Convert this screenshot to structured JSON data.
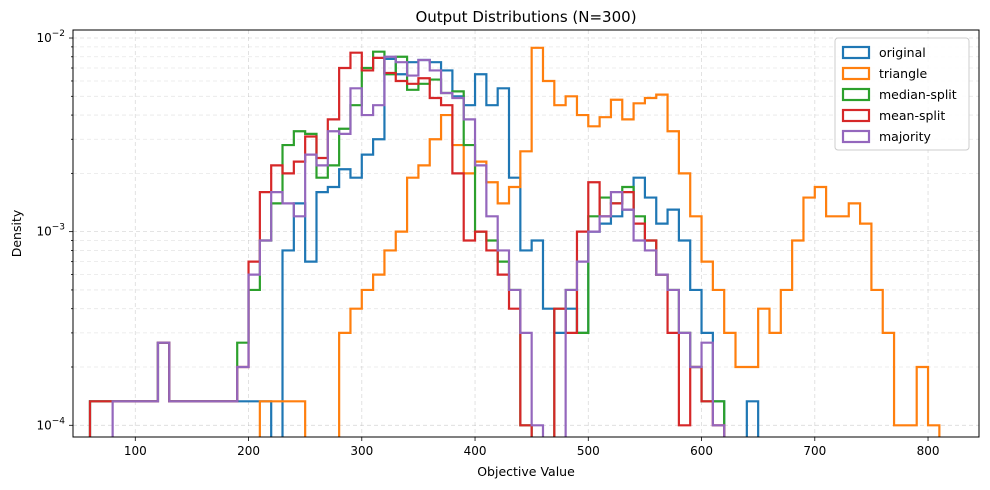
{
  "chart_data": {
    "type": "histogram",
    "title": "Output Distributions (N=300)",
    "xlabel": "Objective Value",
    "ylabel": "Density",
    "xlim": [
      45,
      845
    ],
    "ylim": [
      8.7e-05,
      0.011
    ],
    "yscale": "log",
    "grid": true,
    "legend_position": "top-right",
    "x_ticks": [
      100,
      200,
      300,
      400,
      500,
      600,
      700,
      800
    ],
    "y_ticks": [
      {
        "value": 0.0001,
        "base": "10",
        "exp": "−4"
      },
      {
        "value": 0.001,
        "base": "10",
        "exp": "−3"
      },
      {
        "value": 0.01,
        "base": "10",
        "exp": "−2"
      }
    ],
    "series": [
      {
        "name": "original",
        "color": "#1f77b4",
        "edges": [
          60,
          70,
          80,
          90,
          100,
          110,
          120,
          130,
          140,
          150,
          160,
          170,
          180,
          190,
          200,
          210,
          220,
          230,
          240,
          250,
          260,
          270,
          280,
          290,
          300,
          310,
          320,
          330,
          340,
          350,
          360,
          370,
          380,
          390,
          400,
          410,
          420,
          430,
          440,
          450,
          460,
          470,
          480,
          490,
          500,
          510,
          520,
          530,
          540,
          550,
          560,
          570,
          580,
          590,
          600,
          610,
          620,
          630,
          640,
          650
        ],
        "values": [
          0.000133,
          0.000133,
          0.000133,
          0.000133,
          0.000133,
          0.000133,
          0.000267,
          0.000133,
          0.000133,
          0.000133,
          0.000133,
          0.000133,
          0.000133,
          0.000133,
          0.000133,
          0.000133,
          0.0,
          0.0008,
          0.0014,
          0.0007,
          0.0016,
          0.0017,
          0.0021,
          0.0019,
          0.0025,
          0.003,
          0.0078,
          0.0065,
          0.0075,
          0.0077,
          0.0075,
          0.0068,
          0.005,
          0.0045,
          0.0065,
          0.0045,
          0.0055,
          0.0019,
          0.0008,
          0.0009,
          0.0004,
          0.0003,
          0.0004,
          0.0003,
          0.001,
          0.0011,
          0.0012,
          0.0013,
          0.0019,
          0.0015,
          0.0011,
          0.0013,
          0.0009,
          0.0005,
          0.0003,
          0.000133,
          0.0,
          0.0,
          0.000133,
          0.0
        ]
      },
      {
        "name": "triangle",
        "color": "#ff7f0e",
        "edges": [
          200,
          210,
          220,
          230,
          240,
          250,
          260,
          270,
          280,
          290,
          300,
          310,
          320,
          330,
          340,
          350,
          360,
          370,
          380,
          390,
          400,
          410,
          420,
          430,
          440,
          450,
          460,
          470,
          480,
          490,
          500,
          510,
          520,
          530,
          540,
          550,
          560,
          570,
          580,
          590,
          600,
          610,
          620,
          630,
          640,
          650,
          660,
          670,
          680,
          690,
          700,
          710,
          720,
          730,
          740,
          750,
          760,
          770,
          780,
          790,
          800,
          810
        ],
        "values": [
          0.0,
          0.000133,
          0.000133,
          0.000133,
          0.000133,
          0.0,
          0.0,
          0.0,
          0.0003,
          0.0004,
          0.0005,
          0.0006,
          0.0008,
          0.001,
          0.0019,
          0.0022,
          0.003,
          0.004,
          0.0028,
          0.002,
          0.0023,
          0.0018,
          0.0014,
          0.0017,
          0.0026,
          0.0089,
          0.006,
          0.0045,
          0.005,
          0.004,
          0.0035,
          0.0039,
          0.0048,
          0.0038,
          0.0046,
          0.0049,
          0.0051,
          0.0033,
          0.002,
          0.0012,
          0.0007,
          0.0005,
          0.0003,
          0.0002,
          0.0002,
          0.0004,
          0.0003,
          0.0005,
          0.0009,
          0.0015,
          0.0017,
          0.0012,
          0.0012,
          0.0014,
          0.0011,
          0.0005,
          0.0003,
          0.0001,
          0.0001,
          0.0002,
          0.0001,
          0.0
        ]
      },
      {
        "name": "median-split",
        "color": "#2ca02c",
        "edges": [
          60,
          70,
          80,
          90,
          100,
          110,
          120,
          130,
          140,
          150,
          160,
          170,
          180,
          190,
          200,
          210,
          220,
          230,
          240,
          250,
          260,
          270,
          280,
          290,
          300,
          310,
          320,
          330,
          340,
          350,
          360,
          370,
          380,
          390,
          400,
          410,
          420,
          430,
          440,
          450,
          460,
          470,
          480,
          490,
          500,
          510,
          520,
          530,
          540,
          550,
          560,
          570,
          580,
          590,
          600,
          610,
          620
        ],
        "values": [
          0.000133,
          0.000133,
          0.000133,
          0.000133,
          0.000133,
          0.000133,
          0.000267,
          0.000133,
          0.000133,
          0.000133,
          0.000133,
          0.000133,
          0.000133,
          0.000267,
          0.0005,
          0.0009,
          0.0014,
          0.0028,
          0.0033,
          0.0032,
          0.0019,
          0.0022,
          0.0034,
          0.0045,
          0.007,
          0.0085,
          0.0065,
          0.008,
          0.0054,
          0.0058,
          0.0061,
          0.0052,
          0.0053,
          0.0028,
          0.001,
          0.0009,
          0.0007,
          0.0005,
          0.0001,
          0.0,
          0.0,
          0.0004,
          0.0005,
          0.0003,
          0.0012,
          0.0015,
          0.0014,
          0.0017,
          0.0012,
          0.0009,
          0.0006,
          0.0005,
          0.0003,
          0.0002,
          0.000133,
          0.000133,
          0.0
        ]
      },
      {
        "name": "mean-split",
        "color": "#d62728",
        "edges": [
          60,
          70,
          80,
          90,
          100,
          110,
          120,
          130,
          140,
          150,
          160,
          170,
          180,
          190,
          200,
          210,
          220,
          230,
          240,
          250,
          260,
          270,
          280,
          290,
          300,
          310,
          320,
          330,
          340,
          350,
          360,
          370,
          380,
          390,
          400,
          410,
          420,
          430,
          440,
          450,
          460,
          470,
          480,
          490,
          500,
          510,
          520,
          530,
          540,
          550,
          560,
          570,
          580,
          590,
          600,
          610,
          620
        ],
        "values": [
          0.000133,
          0.000133,
          0.000133,
          0.000133,
          0.000133,
          0.000133,
          0.000267,
          0.000133,
          0.000133,
          0.000133,
          0.000133,
          0.000133,
          0.000133,
          0.0002,
          0.0007,
          0.0016,
          0.0022,
          0.002,
          0.0023,
          0.0031,
          0.0024,
          0.0038,
          0.007,
          0.0084,
          0.0068,
          0.0079,
          0.0066,
          0.006,
          0.0058,
          0.0062,
          0.0049,
          0.0045,
          0.002,
          0.0009,
          0.001,
          0.0008,
          0.0006,
          0.0004,
          0.0001,
          0.0,
          0.0,
          0.0004,
          0.0003,
          0.001,
          0.0018,
          0.0012,
          0.0014,
          0.0016,
          0.0011,
          0.0009,
          0.0006,
          0.0003,
          0.0001,
          0.0002,
          0.000133,
          0.0001,
          0.0
        ]
      },
      {
        "name": "majority",
        "color": "#9467bd",
        "edges": [
          80,
          90,
          100,
          110,
          120,
          130,
          140,
          150,
          160,
          170,
          180,
          190,
          200,
          210,
          220,
          230,
          240,
          250,
          260,
          270,
          280,
          290,
          300,
          310,
          320,
          330,
          340,
          350,
          360,
          370,
          380,
          390,
          400,
          410,
          420,
          430,
          440,
          450,
          460,
          470,
          480,
          490,
          500,
          510,
          520,
          530,
          540,
          550,
          560,
          570,
          580,
          590,
          600,
          610,
          620
        ],
        "values": [
          0.000133,
          0.000133,
          0.000133,
          0.000133,
          0.000267,
          0.000133,
          0.000133,
          0.000133,
          0.000133,
          0.000133,
          0.000133,
          0.0002,
          0.0006,
          0.0009,
          0.0016,
          0.0014,
          0.0012,
          0.0025,
          0.0022,
          0.0033,
          0.0032,
          0.0055,
          0.004,
          0.0045,
          0.008,
          0.0075,
          0.0064,
          0.0077,
          0.0068,
          0.0052,
          0.0049,
          0.0038,
          0.0022,
          0.0012,
          0.0008,
          0.0005,
          0.0003,
          0.0001,
          0.0,
          0.0,
          0.0005,
          0.0007,
          0.001,
          0.0012,
          0.0016,
          0.0013,
          0.0009,
          0.0008,
          0.0006,
          0.0005,
          0.0003,
          0.0002,
          0.000267,
          0.0001,
          0.0
        ]
      }
    ]
  }
}
